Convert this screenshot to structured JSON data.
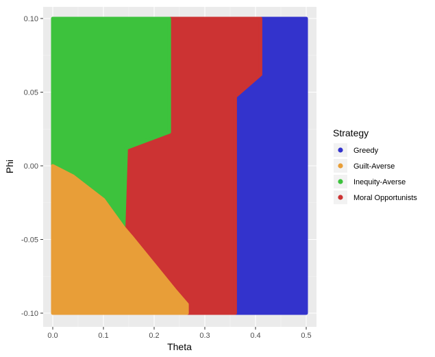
{
  "chart_data": {
    "type": "heatmap",
    "title": "",
    "xlabel": "Theta",
    "ylabel": "Phi",
    "xlim": [
      0,
      0.5
    ],
    "ylim": [
      -0.1,
      0.1
    ],
    "x_ticks": [
      0.0,
      0.1,
      0.2,
      0.3,
      0.4,
      0.5
    ],
    "x_tick_labels": [
      "0.0",
      "0.1",
      "0.2",
      "0.3",
      "0.4",
      "0.5"
    ],
    "y_ticks": [
      -0.1,
      -0.05,
      0.0,
      0.05,
      0.1
    ],
    "y_tick_labels": [
      "-0.10",
      "-0.05",
      "0.00",
      "0.05",
      "0.10"
    ],
    "grid": true,
    "legend": {
      "title": "Strategy",
      "position": "right",
      "entries": [
        {
          "name": "Greedy",
          "color": "#3333CC"
        },
        {
          "name": "Guilt-Averse",
          "color": "#E89E38"
        },
        {
          "name": "Inequity-Averse",
          "color": "#3DC23D"
        },
        {
          "name": "Moral Opportunists",
          "color": "#CC3333"
        }
      ]
    },
    "regions": [
      {
        "strategy": "Greedy",
        "color": "#3333CC",
        "polygon": [
          [
            0.36,
            -0.1
          ],
          [
            0.5,
            -0.1
          ],
          [
            0.5,
            0.1
          ],
          [
            0.41,
            0.1
          ],
          [
            0.41,
            0.062
          ],
          [
            0.36,
            0.047
          ]
        ]
      },
      {
        "strategy": "Moral Opportunists",
        "color": "#CC3333",
        "polygon": [
          [
            0.265,
            -0.1
          ],
          [
            0.36,
            -0.1
          ],
          [
            0.36,
            0.047
          ],
          [
            0.41,
            0.062
          ],
          [
            0.41,
            0.1
          ],
          [
            0.23,
            0.1
          ],
          [
            0.23,
            0.023
          ],
          [
            0.145,
            0.012
          ],
          [
            0.14,
            -0.042
          ],
          [
            0.155,
            -0.048
          ],
          [
            0.2,
            -0.067
          ],
          [
            0.24,
            -0.084
          ],
          [
            0.265,
            -0.094
          ]
        ]
      },
      {
        "strategy": "Inequity-Averse",
        "color": "#3DC23D",
        "polygon": [
          [
            0.0,
            0.0
          ],
          [
            0.0,
            0.1
          ],
          [
            0.23,
            0.1
          ],
          [
            0.23,
            0.023
          ],
          [
            0.145,
            0.012
          ],
          [
            0.14,
            -0.042
          ],
          [
            0.1,
            -0.023
          ],
          [
            0.04,
            -0.007
          ]
        ]
      },
      {
        "strategy": "Guilt-Averse",
        "color": "#E89E38",
        "polygon": [
          [
            0.0,
            -0.1
          ],
          [
            0.265,
            -0.1
          ],
          [
            0.265,
            -0.094
          ],
          [
            0.24,
            -0.084
          ],
          [
            0.2,
            -0.067
          ],
          [
            0.155,
            -0.048
          ],
          [
            0.14,
            -0.042
          ],
          [
            0.1,
            -0.023
          ],
          [
            0.04,
            -0.007
          ],
          [
            0.0,
            0.0
          ]
        ]
      }
    ]
  }
}
